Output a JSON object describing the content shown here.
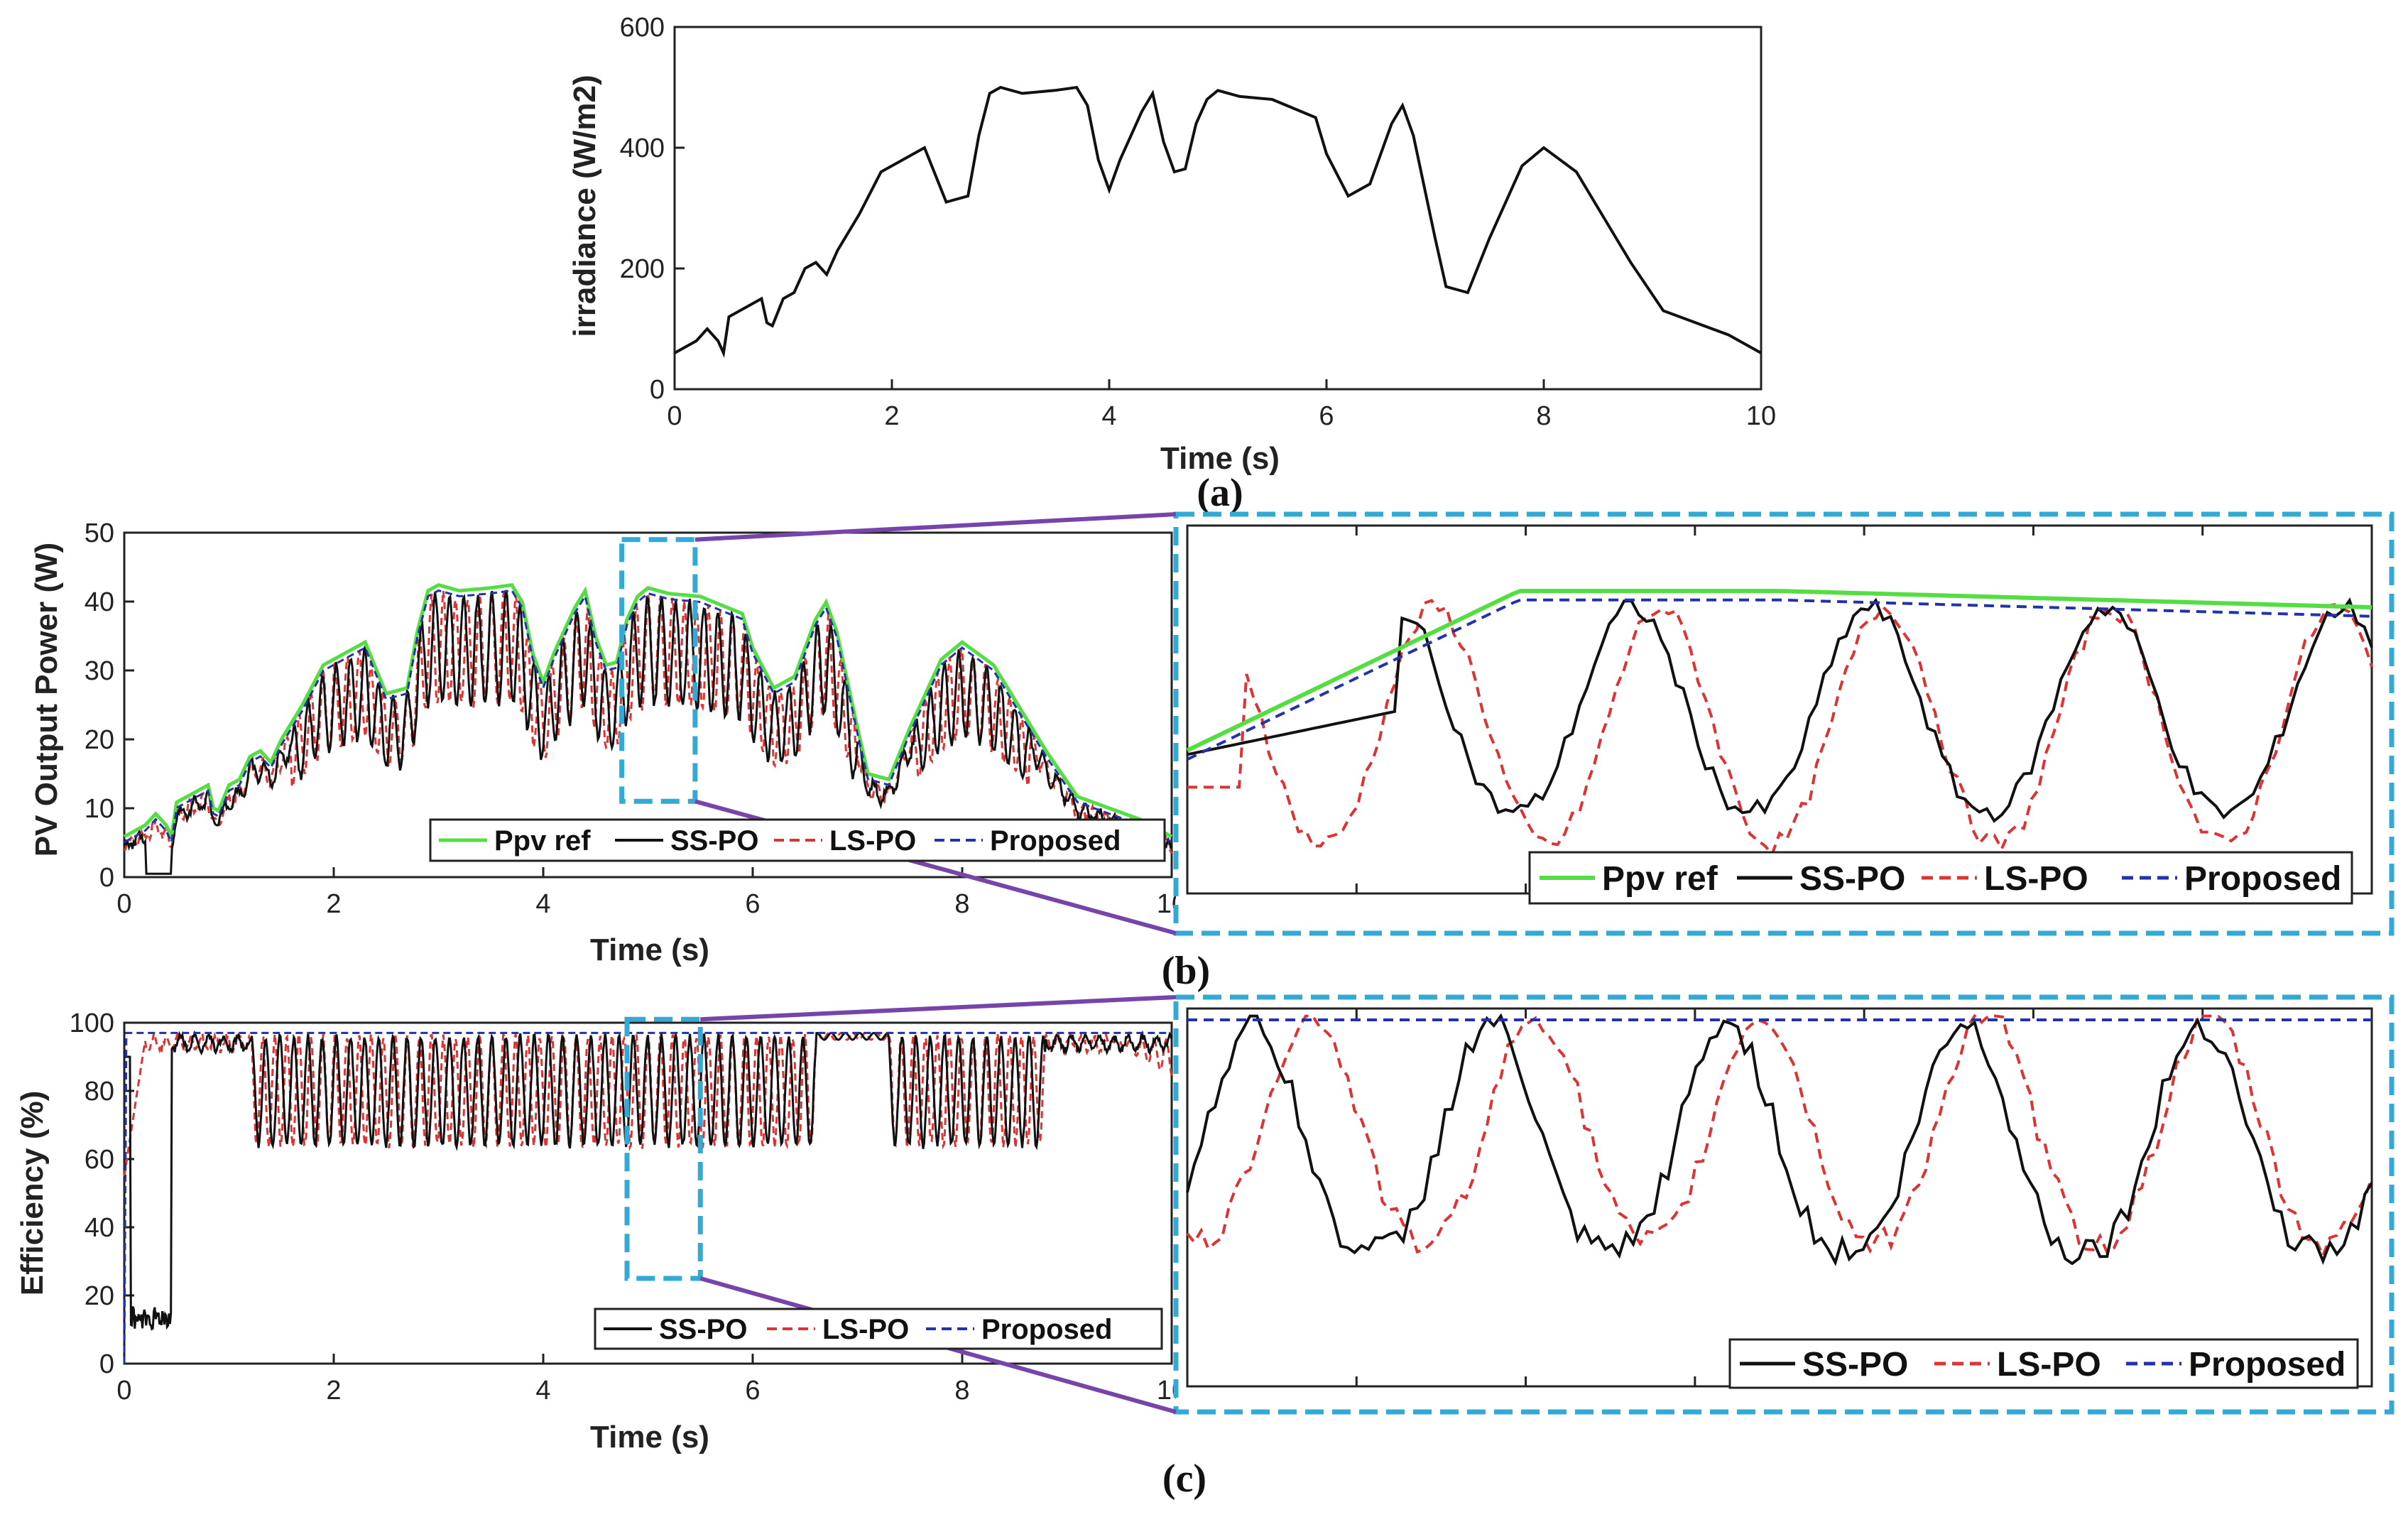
{
  "colors": {
    "ref": "#55dd44",
    "ss": "#111111",
    "ls": "#dd3333",
    "proposed": "#2233aa",
    "zoom_box": "#33aad6",
    "connector": "#7744aa",
    "axis": "#222222"
  },
  "chart_data": [
    {
      "id": "a",
      "type": "line",
      "panel_label": "(a)",
      "xlabel": "Time (s)",
      "ylabel": "irradiance (W/m2)",
      "xlim": [
        0,
        10
      ],
      "ylim": [
        0,
        600
      ],
      "xticks": [
        "0",
        "2",
        "4",
        "6",
        "8",
        "10"
      ],
      "yticks": [
        "0",
        "200",
        "400",
        "600"
      ],
      "series": [
        {
          "name": "irradiance",
          "x": [
            0,
            0.2,
            0.3,
            0.4,
            0.45,
            0.5,
            0.7,
            0.8,
            0.85,
            0.9,
            1.0,
            1.1,
            1.2,
            1.3,
            1.4,
            1.5,
            1.7,
            1.9,
            2.1,
            2.3,
            2.5,
            2.7,
            2.8,
            2.9,
            3.0,
            3.2,
            3.5,
            3.7,
            3.8,
            3.9,
            4.0,
            4.1,
            4.3,
            4.4,
            4.5,
            4.6,
            4.7,
            4.8,
            4.9,
            5.0,
            5.2,
            5.5,
            5.9,
            6.0,
            6.2,
            6.4,
            6.6,
            6.7,
            6.8,
            7.0,
            7.1,
            7.3,
            7.5,
            7.8,
            8.0,
            8.3,
            8.5,
            8.8,
            9.1,
            9.4,
            9.7,
            10.0
          ],
          "y": [
            60,
            80,
            100,
            80,
            60,
            120,
            140,
            150,
            110,
            105,
            150,
            160,
            200,
            210,
            190,
            230,
            290,
            360,
            380,
            400,
            310,
            320,
            420,
            490,
            500,
            490,
            495,
            500,
            470,
            380,
            330,
            380,
            460,
            490,
            410,
            360,
            365,
            440,
            480,
            495,
            485,
            480,
            450,
            390,
            320,
            340,
            440,
            470,
            420,
            250,
            170,
            160,
            250,
            370,
            400,
            360,
            300,
            210,
            130,
            110,
            90,
            60
          ]
        }
      ]
    },
    {
      "id": "b",
      "type": "line",
      "panel_label": "(b)",
      "xlabel": "Time (s)",
      "ylabel": "PV Output Power (W)",
      "xlim": [
        0,
        10
      ],
      "ylim": [
        0,
        50
      ],
      "xticks": [
        "0",
        "2",
        "4",
        "6",
        "8",
        "10"
      ],
      "yticks": [
        "0",
        "10",
        "20",
        "30",
        "40",
        "50"
      ],
      "legend": [
        "Ppv ref",
        "SS-PO",
        "LS-PO",
        "Proposed"
      ],
      "legend_position": "bottom-right",
      "zoom_window": {
        "x": [
          4.75,
          5.45
        ],
        "y": [
          11,
          49
        ]
      },
      "inset": {
        "xlim": [
          4.75,
          5.45
        ],
        "ylim": [
          5,
          50
        ],
        "legend": [
          "Ppv ref",
          "SS-PO",
          "LS-PO",
          "Proposed"
        ],
        "legend_position": "bottom-right"
      },
      "series": [
        {
          "name": "Ppv ref",
          "role": "reference"
        },
        {
          "name": "SS-PO",
          "role": "ss"
        },
        {
          "name": "LS-PO",
          "role": "ls"
        },
        {
          "name": "Proposed",
          "role": "proposed"
        }
      ]
    },
    {
      "id": "c",
      "type": "line",
      "panel_label": "(c)",
      "xlabel": "Time (s)",
      "ylabel": "Efficiency (%)",
      "xlim": [
        0,
        10
      ],
      "ylim": [
        0,
        100
      ],
      "xticks": [
        "0",
        "2",
        "4",
        "6",
        "8",
        "10"
      ],
      "yticks": [
        "0",
        "20",
        "40",
        "60",
        "80",
        "100"
      ],
      "legend": [
        "SS-PO",
        "LS-PO",
        "Proposed"
      ],
      "legend_position": "bottom-right",
      "zoom_window": {
        "x": [
          4.8,
          5.5
        ],
        "y": [
          25,
          101
        ]
      },
      "inset": {
        "xlim": [
          4.8,
          5.5
        ],
        "ylim": [
          0,
          100
        ],
        "legend": [
          "SS-PO",
          "LS-PO",
          "Proposed"
        ],
        "legend_position": "bottom-right"
      },
      "series": [
        {
          "name": "SS-PO",
          "role": "ss"
        },
        {
          "name": "LS-PO",
          "role": "ls"
        },
        {
          "name": "Proposed",
          "role": "proposed",
          "value": 97
        }
      ]
    }
  ]
}
